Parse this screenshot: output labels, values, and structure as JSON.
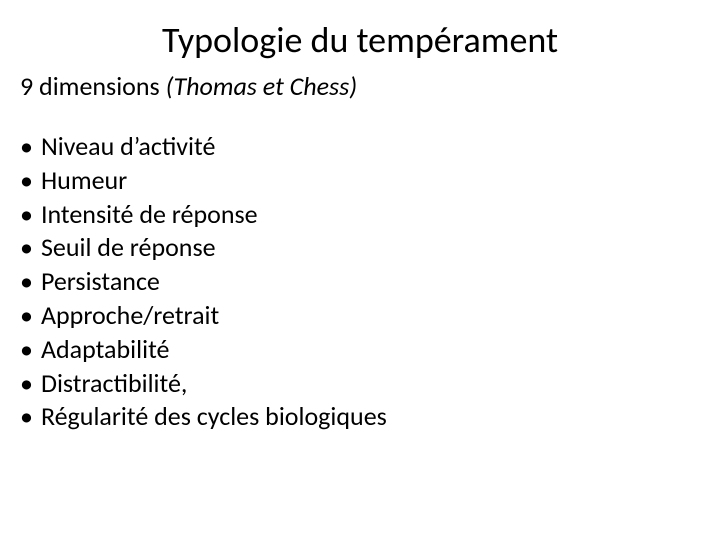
{
  "title": "Typologie du tempérament",
  "subtitle_lead": "9 dimensions ",
  "subtitle_authors": "(Thomas et Chess)",
  "bullets": [
    "Niveau d’activité",
    "Humeur",
    "Intensité de réponse",
    "Seuil de réponse",
    "Persistance",
    "Approche/retrait",
    "Adaptabilité",
    "Distractibilité,",
    "Régularité des cycles biologiques"
  ],
  "colors": {
    "background": "#ffffff",
    "text": "#000000"
  },
  "typography": {
    "family": "Calibri",
    "title_size_pt": 36,
    "body_size_pt": 26
  }
}
